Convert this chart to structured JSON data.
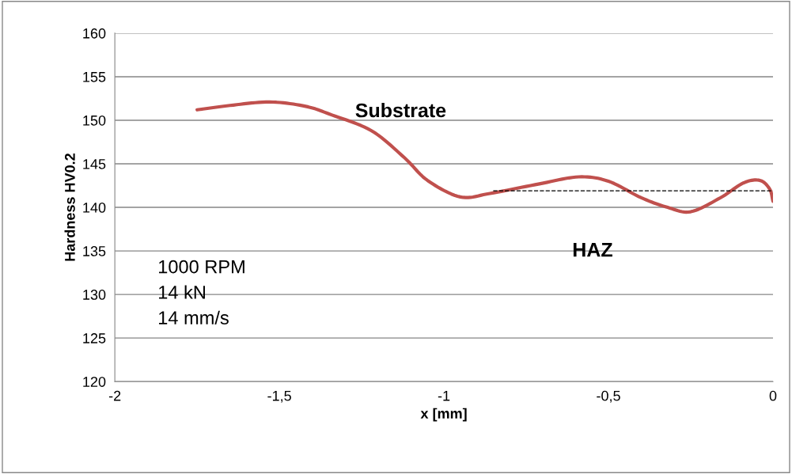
{
  "chart_data": {
    "type": "line",
    "xlabel": "x [mm]",
    "ylabel": "Hardness HV0.2",
    "xlim": [
      -2,
      0
    ],
    "xticks": [
      -2,
      {
        "value": -1.5,
        "label": "-1,5"
      },
      -1,
      {
        "value": -0.5,
        "label": "-0,5"
      },
      0
    ],
    "ylim": [
      120,
      160
    ],
    "yticks": [
      120,
      125,
      130,
      135,
      140,
      145,
      150,
      155,
      160
    ],
    "grid": "y",
    "legend": false,
    "series": [
      {
        "color": "#c0504d",
        "line_style": "solid",
        "x": [
          -1.75,
          -1.65,
          -1.53,
          -1.42,
          -1.34,
          -1.22,
          -1.12,
          -1.05,
          -0.95,
          -0.86,
          -0.71,
          -0.59,
          -0.5,
          -0.4,
          -0.32,
          -0.25,
          -0.16,
          -0.09,
          -0.04,
          -0.01,
          0
        ],
        "values": [
          151.2,
          151.7,
          152.1,
          151.6,
          150.6,
          148.8,
          145.7,
          143.1,
          141.2,
          141.6,
          142.7,
          143.5,
          143.0,
          141.1,
          140.0,
          139.5,
          141.1,
          142.8,
          143.1,
          142.1,
          140.7
        ]
      },
      {
        "color": "#000000",
        "line_style": "dashed",
        "x": [
          -0.85,
          0
        ],
        "values": [
          141.9,
          141.9
        ]
      }
    ],
    "annotations": [
      "Substrate",
      "HAZ",
      "1000 RPM\n14 kN\n14 mm/s"
    ]
  }
}
